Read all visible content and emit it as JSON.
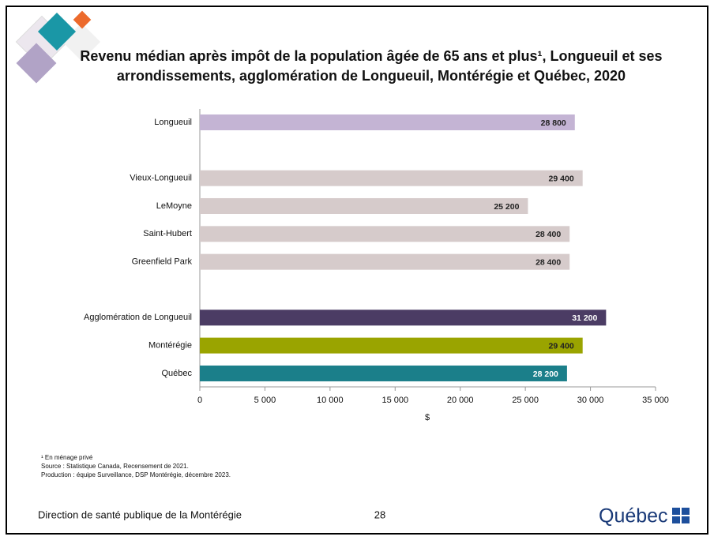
{
  "chart_data": {
    "type": "bar",
    "orientation": "horizontal",
    "title_lines": [
      "Revenu médian après impôt de la population âgée de 65 ans et plus¹, Longueuil et ses",
      "arrondissements, agglomération de Longueuil, Montérégie et Québec, 2020"
    ],
    "categories": [
      "Longueuil",
      null,
      "Vieux-Longueuil",
      "LeMoyne",
      "Saint-Hubert",
      "Greenfield Park",
      null,
      "Agglomération de Longueuil",
      "Montérégie",
      "Québec"
    ],
    "values": [
      28800,
      null,
      29400,
      25200,
      28400,
      28400,
      null,
      31200,
      29400,
      28200
    ],
    "value_labels": [
      "28 800",
      null,
      "29 400",
      "25 200",
      "28 400",
      "28 400",
      null,
      "31 200",
      "29 400",
      "28 200"
    ],
    "colors": [
      "#c4b4d4",
      null,
      "#d6cbcb",
      "#d6cbcb",
      "#d6cbcb",
      "#d6cbcb",
      null,
      "#4b3c64",
      "#9aa400",
      "#1b7f8a"
    ],
    "xlabel": "$",
    "xlim": [
      0,
      35000
    ],
    "xticks": [
      0,
      {
        "value": 5000,
        "label": "5 000"
      },
      {
        "value": 10000,
        "label": "10 000"
      },
      {
        "value": 15000,
        "label": "15 000"
      },
      {
        "value": 20000,
        "label": "20 000"
      },
      {
        "value": 25000,
        "label": "25 000"
      },
      {
        "value": 30000,
        "label": "30 000"
      },
      {
        "value": 35000,
        "label": "35 000"
      }
    ],
    "grid": false
  },
  "footnotes": [
    "¹ En ménage privé",
    "Source : Statistique Canada, Recensement de 2021.",
    "Production : équipe Surveillance, DSP Montérégie, décembre 2023."
  ],
  "footer": {
    "organization": "Direction de santé publique de la Montérégie",
    "page": "28",
    "logo": "Québec"
  }
}
